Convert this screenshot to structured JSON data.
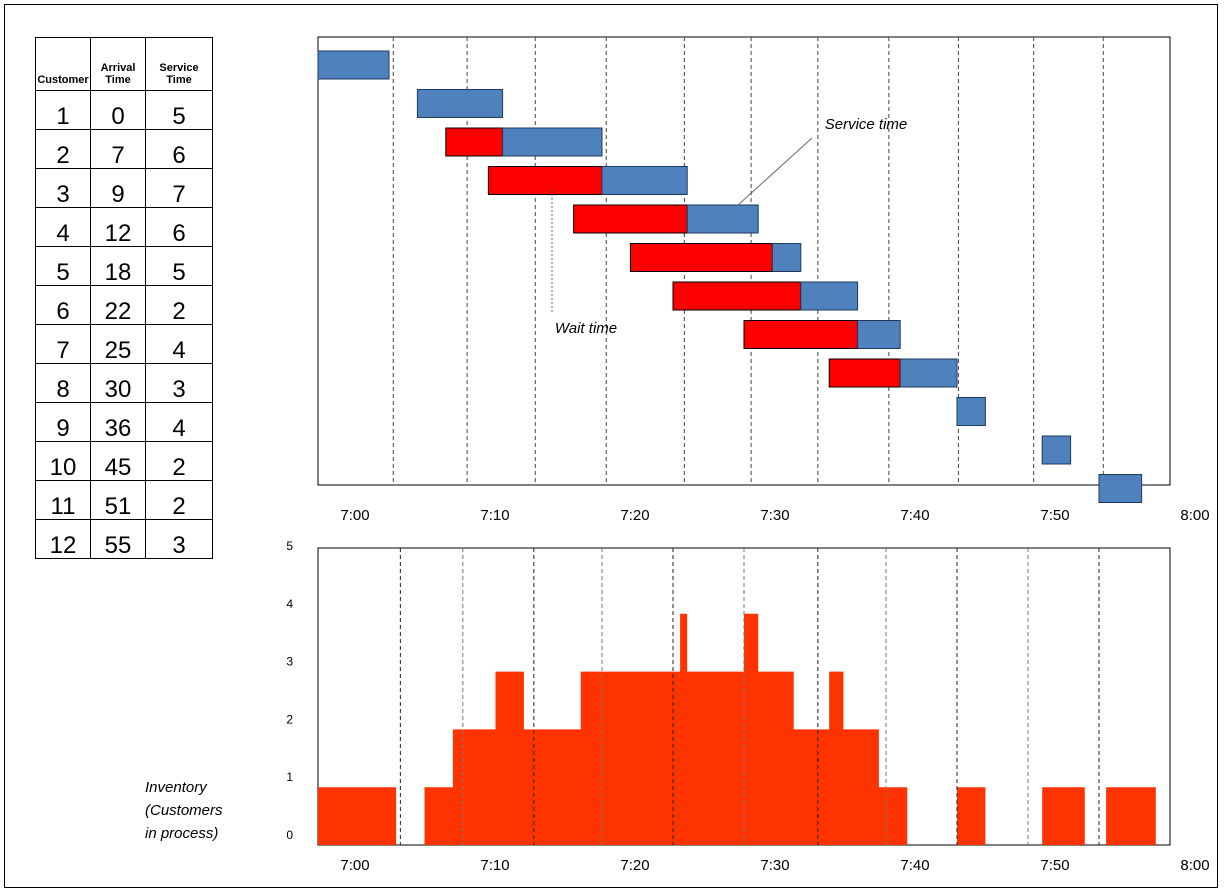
{
  "table": {
    "headers": [
      "Customer",
      "Arrival Time",
      "Service Time"
    ],
    "rows": [
      [
        "1",
        "0",
        "5"
      ],
      [
        "2",
        "7",
        "6"
      ],
      [
        "3",
        "9",
        "7"
      ],
      [
        "4",
        "12",
        "6"
      ],
      [
        "5",
        "18",
        "5"
      ],
      [
        "6",
        "22",
        "2"
      ],
      [
        "7",
        "25",
        "4"
      ],
      [
        "8",
        "30",
        "3"
      ],
      [
        "9",
        "36",
        "4"
      ],
      [
        "10",
        "45",
        "2"
      ],
      [
        "11",
        "51",
        "2"
      ],
      [
        "12",
        "55",
        "3"
      ]
    ]
  },
  "chart_data": [
    {
      "type": "bar",
      "subtype": "gantt",
      "x_ticks": [
        "7:00",
        "7:10",
        "7:20",
        "7:30",
        "7:40",
        "7:50",
        "8:00"
      ],
      "xlim_minutes": [
        0,
        60
      ],
      "series": [
        {
          "name": "Wait time",
          "color": "#ff0000"
        },
        {
          "name": "Service time",
          "color": "#4f81bd"
        }
      ],
      "tasks": [
        {
          "customer": 1,
          "arrival": 0,
          "wait": 0,
          "service": 5
        },
        {
          "customer": 2,
          "arrival": 7,
          "wait": 0,
          "service": 6
        },
        {
          "customer": 3,
          "arrival": 9,
          "wait": 4,
          "service": 7
        },
        {
          "customer": 4,
          "arrival": 12,
          "wait": 8,
          "service": 6
        },
        {
          "customer": 5,
          "arrival": 18,
          "wait": 8,
          "service": 5
        },
        {
          "customer": 6,
          "arrival": 22,
          "wait": 10,
          "service": 2
        },
        {
          "customer": 7,
          "arrival": 25,
          "wait": 9,
          "service": 4
        },
        {
          "customer": 8,
          "arrival": 30,
          "wait": 8,
          "service": 3
        },
        {
          "customer": 9,
          "arrival": 36,
          "wait": 5,
          "service": 4
        },
        {
          "customer": 10,
          "arrival": 45,
          "wait": 0,
          "service": 2
        },
        {
          "customer": 11,
          "arrival": 51,
          "wait": 0,
          "service": 2
        },
        {
          "customer": 12,
          "arrival": 55,
          "wait": 0,
          "service": 3
        }
      ],
      "annotations": [
        "Service time",
        "Wait time"
      ],
      "grid": "vertical dashed"
    },
    {
      "type": "area",
      "subtype": "step",
      "x_ticks": [
        "7:00",
        "7:10",
        "7:20",
        "7:30",
        "7:40",
        "7:50",
        "8:00"
      ],
      "xlim_minutes": [
        0,
        60
      ],
      "y_ticks": [
        "0",
        "1",
        "2",
        "3",
        "4",
        "5"
      ],
      "ylim": [
        0,
        5
      ],
      "ylabel_lines": [
        "Inventory",
        "(Customers",
        "in process)"
      ],
      "color": "#ff3300",
      "steps": [
        {
          "t": 0,
          "y": 1
        },
        {
          "t": 5.5,
          "y": 0
        },
        {
          "t": 7.5,
          "y": 1
        },
        {
          "t": 9.5,
          "y": 2
        },
        {
          "t": 12.5,
          "y": 3
        },
        {
          "t": 14.5,
          "y": 2
        },
        {
          "t": 18.5,
          "y": 3
        },
        {
          "t": 25.5,
          "y": 4
        },
        {
          "t": 26,
          "y": 3
        },
        {
          "t": 30,
          "y": 4
        },
        {
          "t": 31,
          "y": 3
        },
        {
          "t": 33.5,
          "y": 2
        },
        {
          "t": 36,
          "y": 3
        },
        {
          "t": 37,
          "y": 2
        },
        {
          "t": 39.5,
          "y": 1
        },
        {
          "t": 41.5,
          "y": 0
        },
        {
          "t": 45,
          "y": 1
        },
        {
          "t": 47,
          "y": 0
        },
        {
          "t": 51,
          "y": 1
        },
        {
          "t": 54,
          "y": 0
        },
        {
          "t": 55.5,
          "y": 1
        },
        {
          "t": 59,
          "y": 0
        }
      ],
      "grid": "vertical dashed"
    }
  ]
}
